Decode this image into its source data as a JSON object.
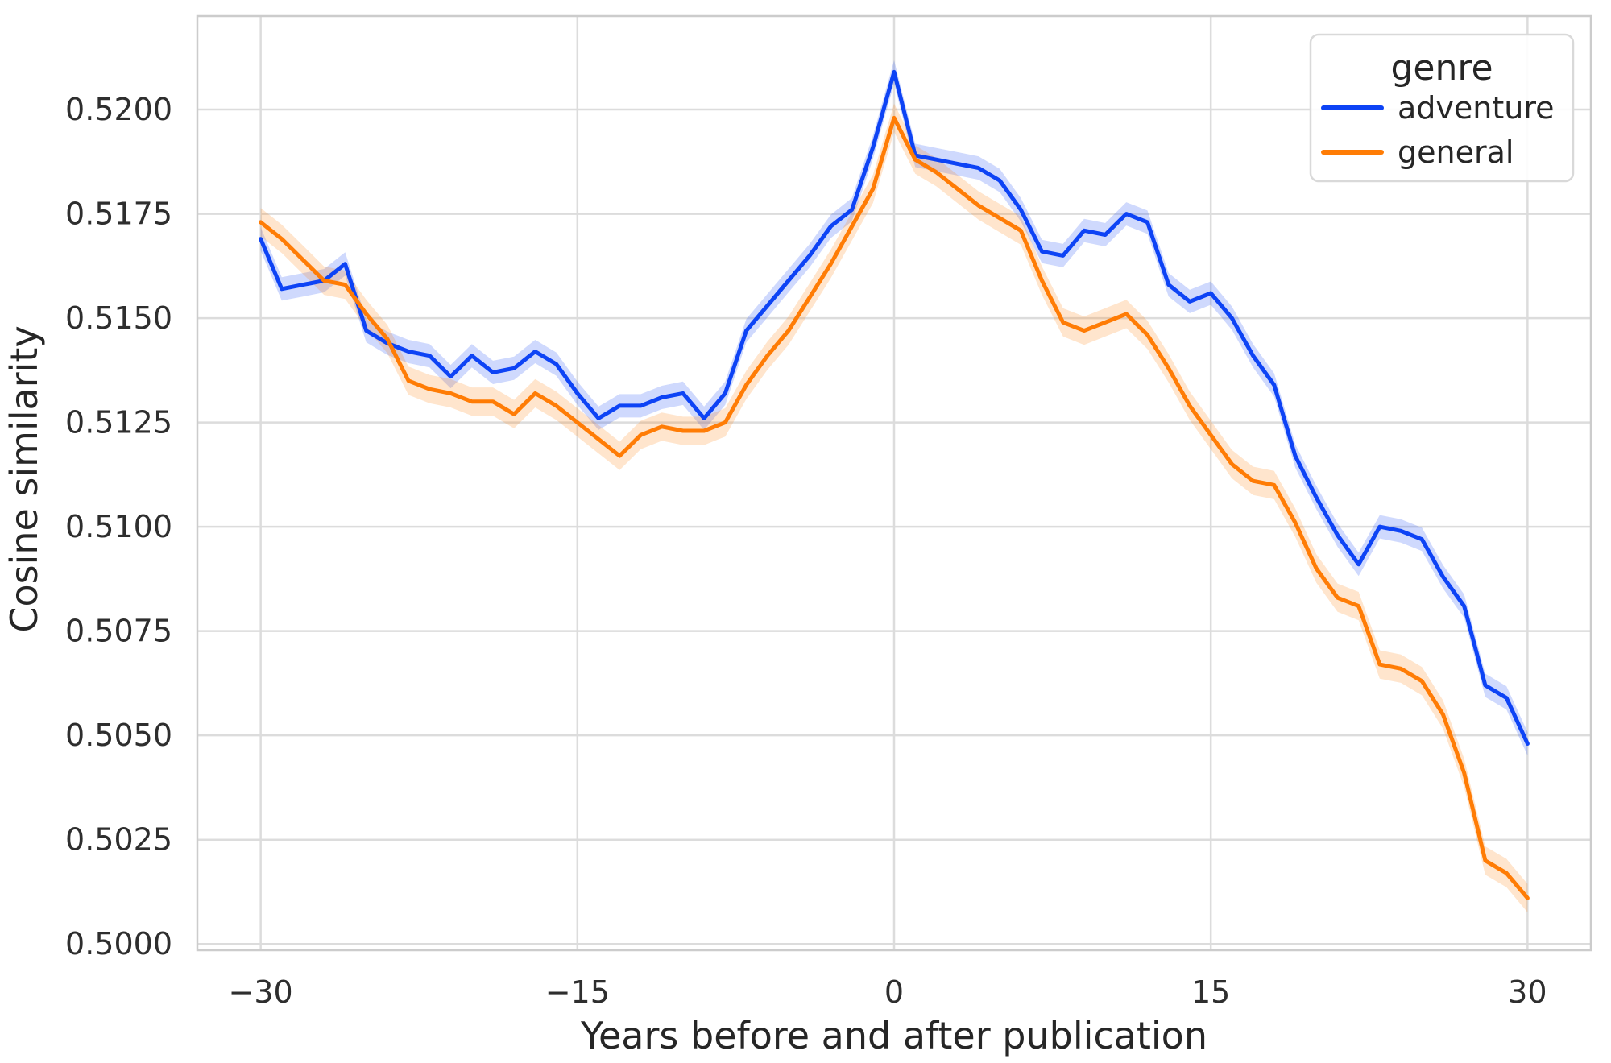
{
  "colors": {
    "background": "#ffffff",
    "grid": "#dcdcdc",
    "spine": "#cccccc",
    "text": "#262626",
    "adventure_blue": "#0d43f5",
    "general_orange": "#ff7c05"
  },
  "axes": {
    "xticklabels": [
      "−30",
      "−15",
      "0",
      "15",
      "30"
    ],
    "yticklabels": [
      "0.5000",
      "0.5025",
      "0.5050",
      "0.5075",
      "0.5100",
      "0.5125",
      "0.5150",
      "0.5175",
      "0.5200"
    ]
  },
  "chart_data": {
    "type": "line",
    "title": "",
    "xlabel": "Years before and after publication",
    "ylabel": "Cosine similarity",
    "legend_title": "genre",
    "legend_position": "upper right",
    "grid": true,
    "xlim": [
      -33,
      33
    ],
    "ylim": [
      0.49985,
      0.52224
    ],
    "xticks": [
      -30,
      -15,
      0,
      15,
      30
    ],
    "yticks": [
      0.5,
      0.5025,
      0.505,
      0.5075,
      0.51,
      0.5125,
      0.515,
      0.5175,
      0.52
    ],
    "x": [
      -30,
      -29,
      -28,
      -27,
      -26,
      -25,
      -24,
      -23,
      -22,
      -21,
      -20,
      -19,
      -18,
      -17,
      -16,
      -15,
      -14,
      -13,
      -12,
      -11,
      -10,
      -9,
      -8,
      -7,
      -6,
      -5,
      -4,
      -3,
      -2,
      -1,
      0,
      1,
      2,
      3,
      4,
      5,
      6,
      7,
      8,
      9,
      10,
      11,
      12,
      13,
      14,
      15,
      16,
      17,
      18,
      19,
      20,
      21,
      22,
      23,
      24,
      25,
      26,
      27,
      28,
      29,
      30
    ],
    "series": [
      {
        "name": "adventure",
        "color": "#0d43f5",
        "band_halfwidth": 0.00028,
        "values": [
          0.5169,
          0.5157,
          0.5158,
          0.5159,
          0.5163,
          0.5147,
          0.5144,
          0.5142,
          0.5141,
          0.5136,
          0.5141,
          0.5137,
          0.5138,
          0.5142,
          0.5139,
          0.5132,
          0.5126,
          0.5129,
          0.5129,
          0.5131,
          0.5132,
          0.5126,
          0.5132,
          0.5147,
          0.5153,
          0.5159,
          0.5165,
          0.5172,
          0.5176,
          0.5191,
          0.5209,
          0.5189,
          0.5188,
          0.5187,
          0.5186,
          0.5183,
          0.5176,
          0.5166,
          0.5165,
          0.5171,
          0.517,
          0.5175,
          0.5173,
          0.5158,
          0.5154,
          0.5156,
          0.515,
          0.5141,
          0.5134,
          0.5117,
          0.5107,
          0.5098,
          0.5091,
          0.51,
          0.5099,
          0.5097,
          0.5088,
          0.5081,
          0.5062,
          0.5059,
          0.5048
        ]
      },
      {
        "name": "general",
        "color": "#ff7c05",
        "band_halfwidth": 0.00034,
        "values": [
          0.5173,
          0.5169,
          0.5164,
          0.5159,
          0.5158,
          0.5151,
          0.5145,
          0.5135,
          0.5133,
          0.5132,
          0.513,
          0.513,
          0.5127,
          0.5132,
          0.5129,
          0.5125,
          0.5121,
          0.5117,
          0.5122,
          0.5124,
          0.5123,
          0.5123,
          0.5125,
          0.5134,
          0.5141,
          0.5147,
          0.5155,
          0.5163,
          0.5172,
          0.5181,
          0.5198,
          0.5188,
          0.5185,
          0.5181,
          0.5177,
          0.5174,
          0.5171,
          0.5159,
          0.5149,
          0.5147,
          0.5149,
          0.5151,
          0.5146,
          0.5138,
          0.5129,
          0.5122,
          0.5115,
          0.5111,
          0.511,
          0.5101,
          0.509,
          0.5083,
          0.5081,
          0.5067,
          0.5066,
          0.5063,
          0.5055,
          0.5041,
          0.502,
          0.5017,
          0.5011
        ]
      }
    ]
  }
}
